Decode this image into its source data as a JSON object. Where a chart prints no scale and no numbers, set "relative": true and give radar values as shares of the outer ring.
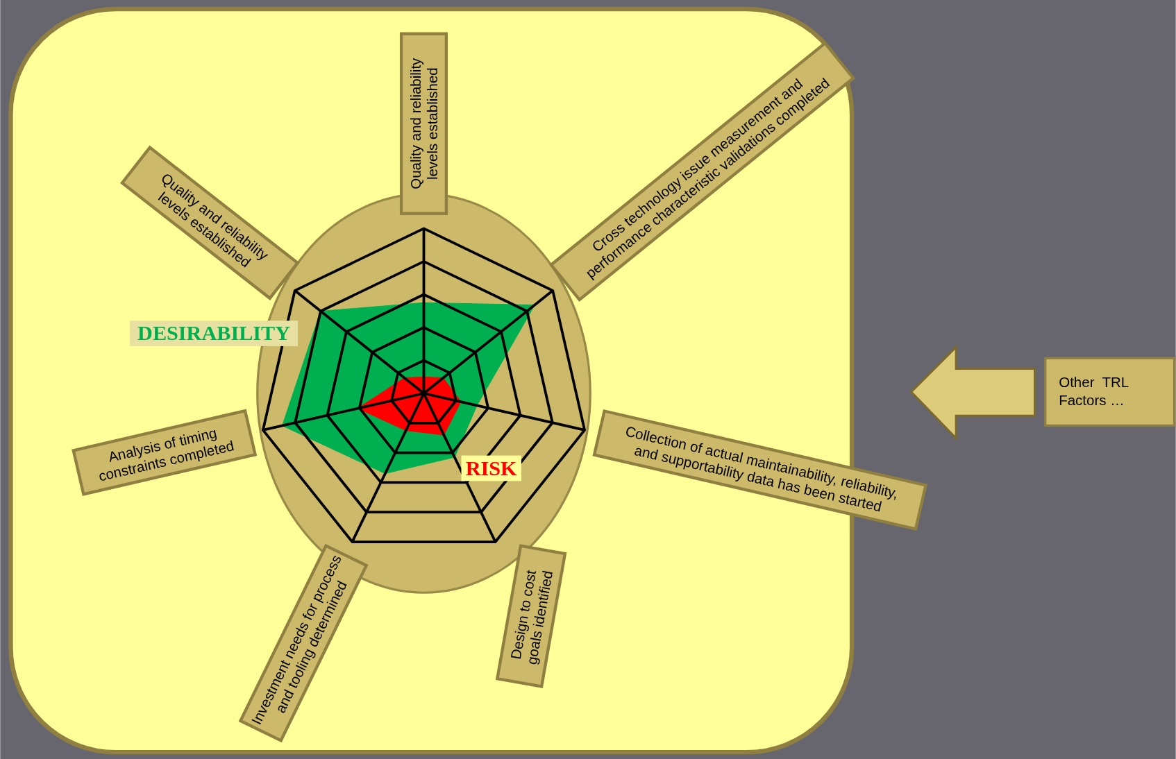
{
  "chart_data": {
    "type": "radar",
    "relative": true,
    "grid": true,
    "legend": false,
    "categories": [
      "Quality and reliability levels established",
      "Cross technology issue measurement and performance characteristic validations completed",
      "Collection of actual maintainability, reliability, and supportability data has been started",
      "Design to cost goals identified",
      "Investment needs for process and tooling determined",
      "Analysis of timing constraints completed",
      "Quality and reliability levels established"
    ],
    "series": [
      {
        "name": "DESIRABILITY",
        "color": "#00b050",
        "values": [
          0.55,
          0.86,
          0.33,
          0.43,
          0.54,
          0.88,
          0.8
        ]
      },
      {
        "name": "RISK",
        "color": "#ff0000",
        "values": [
          0.1,
          0.15,
          0.23,
          0.28,
          0.25,
          0.41,
          0.15
        ]
      }
    ],
    "annotations": [
      "Other  TRL Factors …"
    ]
  }
}
